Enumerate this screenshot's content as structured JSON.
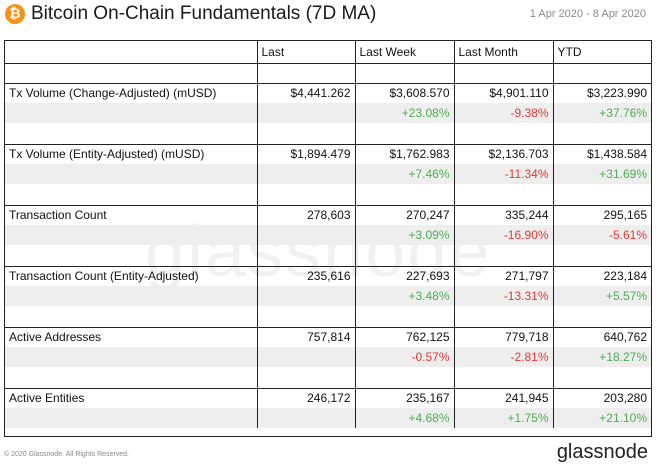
{
  "header": {
    "logo_glyph": "₿",
    "title": "Bitcoin On-Chain Fundamentals (7D MA)",
    "date_range": "1 Apr 2020 - 8 Apr 2020"
  },
  "table": {
    "columns": [
      "",
      "Last",
      "Last Week",
      "Last Month",
      "YTD"
    ],
    "rows": [
      {
        "label": "Tx Volume (Change-Adjusted) (mUSD)",
        "values": [
          "$4,441.262",
          "$3,608.570",
          "$4,901.110",
          "$3,223.990"
        ],
        "changes": [
          "",
          "+23.08%",
          "-9.38%",
          "+37.76%"
        ]
      },
      {
        "label": "Tx Volume (Entity-Adjusted) (mUSD)",
        "values": [
          "$1,894.479",
          "$1,762.983",
          "$2,136.703",
          "$1,438.584"
        ],
        "changes": [
          "",
          "+7.46%",
          "-11.34%",
          "+31.69%"
        ]
      },
      {
        "label": "Transaction Count",
        "values": [
          "278,603",
          "270,247",
          "335,244",
          "295,165"
        ],
        "changes": [
          "",
          "+3.09%",
          "-16.90%",
          "-5.61%"
        ]
      },
      {
        "label": "Transaction Count (Entity-Adjusted)",
        "values": [
          "235,616",
          "227,693",
          "271,797",
          "223,184"
        ],
        "changes": [
          "",
          "+3.48%",
          "-13.31%",
          "+5.57%"
        ]
      },
      {
        "label": "Active Addresses",
        "values": [
          "757,814",
          "762,125",
          "779,718",
          "640,762"
        ],
        "changes": [
          "",
          "-0.57%",
          "-2.81%",
          "+18.27%"
        ]
      },
      {
        "label": "Active Entities",
        "values": [
          "246,172",
          "235,167",
          "241,945",
          "203,280"
        ],
        "changes": [
          "",
          "+4.68%",
          "+1.75%",
          "+21.10%"
        ]
      }
    ]
  },
  "watermark": "glassnode",
  "footer": {
    "copyright": "© 2020 Glassnode. All Rights Reserved.",
    "brand": "glassnode"
  },
  "colors": {
    "positive": "#4caf50",
    "negative": "#e53935",
    "stripe": "#eeeeee",
    "bitcoin_orange": "#f7931a"
  }
}
